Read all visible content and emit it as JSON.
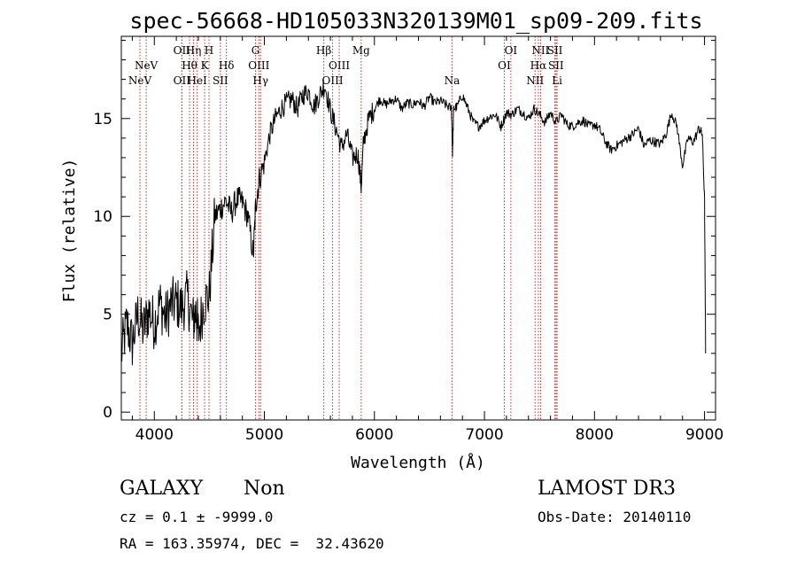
{
  "chart_data": {
    "type": "line",
    "title": "spec-56668-HD105033N320139M01_sp09-209.fits",
    "xlabel": "Wavelength (Å)",
    "ylabel": "Flux (relative)",
    "xlim": [
      3700,
      9100
    ],
    "ylim": [
      -0.4,
      19.2
    ],
    "x_ticks": [
      4000,
      5000,
      6000,
      7000,
      8000,
      9000
    ],
    "x_tick_labels": [
      "4000",
      "5000",
      "6000",
      "7000",
      "8000",
      "9000"
    ],
    "y_ticks": [
      0,
      5,
      10,
      15
    ],
    "y_tick_labels": [
      "0",
      "5",
      "10",
      "15"
    ],
    "grid": false,
    "series": [
      {
        "color": "#000000",
        "x": [
          3700,
          3750,
          3800,
          3850,
          3900,
          3950,
          4000,
          4050,
          4100,
          4150,
          4200,
          4250,
          4300,
          4350,
          4380,
          4400,
          4450,
          4500,
          4550,
          4600,
          4650,
          4700,
          4750,
          4800,
          4850,
          4900,
          4920,
          4950,
          5000,
          5050,
          5100,
          5150,
          5200,
          5250,
          5300,
          5350,
          5400,
          5450,
          5500,
          5550,
          5600,
          5650,
          5700,
          5750,
          5800,
          5850,
          5880,
          5900,
          5950,
          6000,
          6050,
          6100,
          6150,
          6200,
          6250,
          6300,
          6350,
          6400,
          6450,
          6500,
          6550,
          6600,
          6650,
          6700,
          6710,
          6720,
          6750,
          6800,
          6850,
          6900,
          6950,
          7000,
          7050,
          7100,
          7150,
          7200,
          7250,
          7300,
          7350,
          7400,
          7450,
          7500,
          7550,
          7600,
          7650,
          7700,
          7750,
          7800,
          7850,
          7900,
          7950,
          8000,
          8050,
          8100,
          8150,
          8200,
          8250,
          8300,
          8350,
          8400,
          8450,
          8500,
          8550,
          8600,
          8650,
          8700,
          8750,
          8800,
          8850,
          8900,
          8950,
          8980,
          9000,
          9010
        ],
        "y": [
          3.0,
          4.5,
          3.5,
          5.0,
          4.2,
          5.2,
          4.5,
          5.6,
          4.8,
          5.5,
          5.6,
          5.3,
          5.9,
          4.6,
          5.2,
          4.0,
          5.6,
          6.0,
          10.0,
          10.4,
          10.8,
          10.2,
          10.9,
          10.7,
          10.0,
          8.0,
          10.5,
          11.8,
          12.8,
          14.2,
          15.0,
          15.5,
          15.8,
          16.0,
          15.5,
          16.2,
          16.4,
          15.6,
          16.2,
          16.7,
          15.4,
          14.5,
          13.5,
          14.2,
          13.0,
          13.2,
          11.5,
          13.8,
          15.0,
          15.5,
          16.0,
          15.7,
          15.9,
          16.0,
          15.5,
          15.8,
          15.7,
          15.9,
          15.6,
          16.1,
          15.8,
          15.9,
          15.7,
          15.5,
          13.2,
          15.5,
          15.6,
          16.2,
          15.5,
          14.8,
          14.6,
          14.9,
          15.1,
          15.2,
          14.6,
          15.3,
          15.2,
          15.5,
          15.3,
          15.0,
          15.5,
          15.2,
          14.8,
          15.3,
          14.8,
          15.2,
          14.7,
          14.6,
          14.8,
          14.9,
          14.6,
          14.7,
          14.4,
          13.8,
          13.4,
          13.6,
          13.8,
          14.0,
          14.2,
          14.5,
          13.6,
          13.9,
          13.8,
          13.7,
          14.2,
          15.3,
          14.6,
          12.6,
          14.0,
          13.8,
          14.5,
          14.2,
          10.8,
          3.0
        ]
      }
    ],
    "emission_lines": [
      {
        "label": "NeV",
        "wavelength": 3869,
        "row": 3
      },
      {
        "label": "NeV",
        "wavelength": 3926,
        "row": 2
      },
      {
        "label": "OII",
        "wavelength": 4250,
        "row": 3
      },
      {
        "label": "OII",
        "wavelength": 4250,
        "row": 1
      },
      {
        "label": "Hθ",
        "wavelength": 4320,
        "row": 2
      },
      {
        "label": "Hη",
        "wavelength": 4356,
        "row": 1
      },
      {
        "label": "HeI",
        "wavelength": 4390,
        "row": 3
      },
      {
        "label": "K",
        "wavelength": 4457,
        "row": 2
      },
      {
        "label": "H",
        "wavelength": 4497,
        "row": 1
      },
      {
        "label": "SII",
        "wavelength": 4600,
        "row": 3
      },
      {
        "label": "Hδ",
        "wavelength": 4655,
        "row": 2
      },
      {
        "label": "G",
        "wavelength": 4920,
        "row": 1
      },
      {
        "label": "OIII",
        "wavelength": 4950,
        "row": 2
      },
      {
        "label": "Hγ",
        "wavelength": 4965,
        "row": 3
      },
      {
        "label": "Hβ",
        "wavelength": 5540,
        "row": 1
      },
      {
        "label": "OIII",
        "wavelength": 5620,
        "row": 3
      },
      {
        "label": "OIII",
        "wavelength": 5680,
        "row": 2
      },
      {
        "label": "Mg",
        "wavelength": 5880,
        "row": 1
      },
      {
        "label": "Na",
        "wavelength": 6705,
        "row": 3
      },
      {
        "label": "OI",
        "wavelength": 7180,
        "row": 2
      },
      {
        "label": "OI",
        "wavelength": 7240,
        "row": 1
      },
      {
        "label": "NII",
        "wavelength": 7460,
        "row": 3
      },
      {
        "label": "Hα",
        "wavelength": 7490,
        "row": 2
      },
      {
        "label": "NII",
        "wavelength": 7510,
        "row": 1
      },
      {
        "label": "SII",
        "wavelength": 7640,
        "row": 1
      },
      {
        "label": "SII",
        "wavelength": 7650,
        "row": 2
      },
      {
        "label": "Li",
        "wavelength": 7660,
        "row": 3
      }
    ]
  },
  "info": {
    "class": "GALAXY",
    "subclass": "Non",
    "survey": "LAMOST DR3",
    "cz": "cz = 0.1 ± -9999.0",
    "obs_date": "Obs-Date: 20140110",
    "radec": "RA = 163.35974, DEC =  32.43620"
  }
}
